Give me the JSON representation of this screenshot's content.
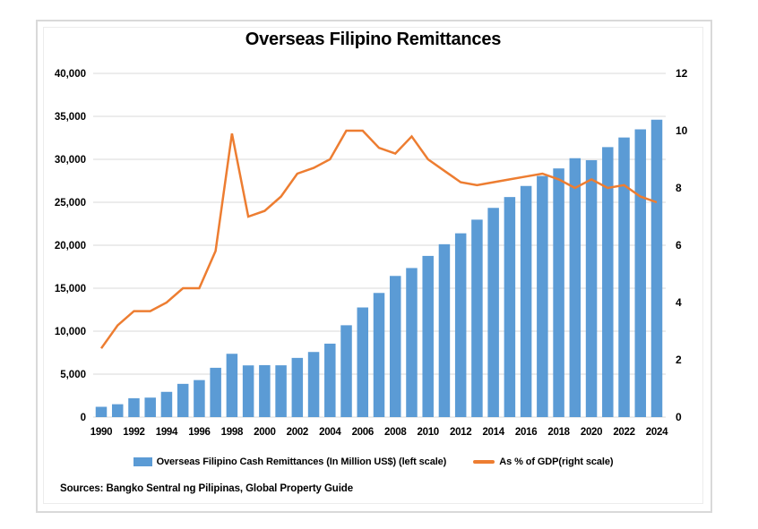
{
  "title": "Overseas Filipino Remittances",
  "legend": {
    "bars_label": "Overseas Filipino Cash Remittances (In Million US$) (left scale)",
    "line_label": "As % of GDP(right scale)"
  },
  "sources": "Sources: Bangko Sentral ng Pilipinas, Global Property Guide",
  "colors": {
    "bar": "#5B9BD5",
    "line": "#ED7D31",
    "grid": "#D9D9D9",
    "text": "#000000",
    "frame": "#D9D9D9"
  },
  "chart_data": {
    "type": "bar",
    "subtype": "bar-line-combo-dual-axis",
    "title": "Overseas Filipino Remittances",
    "x": [
      1990,
      1991,
      1992,
      1993,
      1994,
      1995,
      1996,
      1997,
      1998,
      1999,
      2000,
      2001,
      2002,
      2003,
      2004,
      2005,
      2006,
      2007,
      2008,
      2009,
      2010,
      2011,
      2012,
      2013,
      2014,
      2015,
      2016,
      2017,
      2018,
      2019,
      2020,
      2021,
      2022,
      2023,
      2024
    ],
    "series": [
      {
        "name": "Overseas Filipino Cash Remittances (In Million US$) (left scale)",
        "type": "bar",
        "axis": "left",
        "color": "#5B9BD5",
        "values": [
          1200,
          1500,
          2200,
          2270,
          2940,
          3870,
          4310,
          5740,
          7370,
          6020,
          6050,
          6030,
          6890,
          7580,
          8550,
          10690,
          12760,
          14450,
          16430,
          17350,
          18760,
          20120,
          21390,
          22980,
          24350,
          25610,
          26900,
          28060,
          28940,
          30130,
          29900,
          31420,
          32540,
          33490,
          34610
        ]
      },
      {
        "name": "As % of GDP(right scale)",
        "type": "line",
        "axis": "right",
        "color": "#ED7D31",
        "values": [
          2.4,
          3.2,
          3.7,
          3.7,
          4.0,
          4.5,
          4.5,
          5.8,
          9.9,
          7.0,
          7.2,
          7.7,
          8.5,
          8.7,
          9.0,
          10.0,
          10.0,
          9.4,
          9.2,
          9.8,
          9.0,
          8.6,
          8.2,
          8.1,
          8.2,
          8.3,
          8.4,
          8.5,
          8.3,
          8.0,
          8.3,
          8.0,
          8.1,
          7.7,
          7.5
        ]
      }
    ],
    "left_axis": {
      "min": 0,
      "max": 40000,
      "step": 5000,
      "labels": [
        "0",
        "5,000",
        "10,000",
        "15,000",
        "20,000",
        "25,000",
        "30,000",
        "35,000",
        "40,000"
      ]
    },
    "right_axis": {
      "min": 0,
      "max": 12,
      "step": 2,
      "labels": [
        "0",
        "2",
        "4",
        "6",
        "8",
        "10",
        "12"
      ]
    },
    "x_tick_labels": [
      "1990",
      "1992",
      "1994",
      "1996",
      "1998",
      "2000",
      "2002",
      "2004",
      "2006",
      "2008",
      "2010",
      "2012",
      "2014",
      "2016",
      "2018",
      "2020",
      "2022",
      "2024"
    ],
    "grid": true,
    "legend_position": "bottom"
  }
}
